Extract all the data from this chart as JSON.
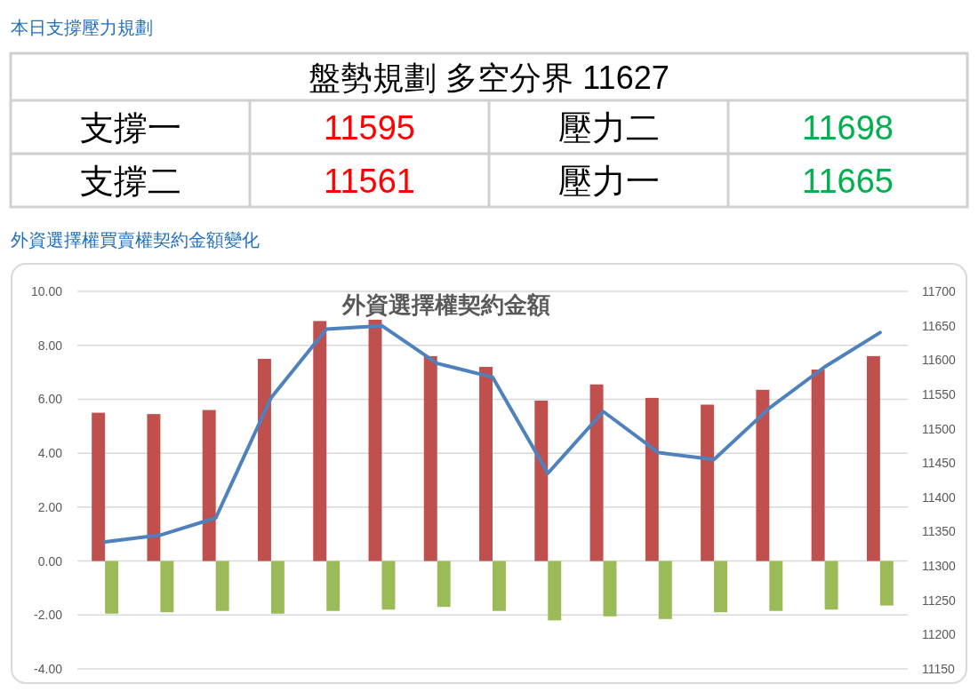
{
  "chart_data": [
    {
      "type": "other",
      "title": "本日支撐壓力規劃",
      "annotations": [
        "盤勢規劃 多空分界 11627",
        "支撐一",
        "11595",
        "壓力二",
        "11698",
        "支撐二",
        "11561",
        "壓力一",
        "11665"
      ]
    },
    {
      "type": "bar",
      "title": "外資選擇權契約金額",
      "annotations": [
        "外資選擇權買賣權契約金額變化"
      ],
      "categories": [
        null,
        null,
        null,
        null,
        null,
        null,
        null,
        null,
        null,
        null,
        null,
        null,
        null,
        null,
        null
      ],
      "series": [
        {
          "color": "#c0504d",
          "values": [
            5.5,
            5.45,
            5.6,
            7.5,
            8.9,
            8.95,
            7.6,
            7.2,
            5.95,
            6.55,
            6.05,
            5.8,
            6.35,
            7.1,
            7.6
          ]
        },
        {
          "color": "#9bbb59",
          "values": [
            -1.95,
            -1.9,
            -1.85,
            -1.95,
            -1.85,
            -1.8,
            -1.7,
            -1.85,
            -2.2,
            -2.05,
            -2.15,
            -1.9,
            -1.85,
            -1.8,
            -1.65
          ]
        },
        {
          "type": "line",
          "axis": "y2",
          "color": "#4f81bd",
          "values": [
            11335,
            11345,
            11370,
            11545,
            11645,
            11650,
            11595,
            11575,
            11435,
            11525,
            11465,
            11455,
            11530,
            11590,
            11640
          ]
        }
      ],
      "ylim": [
        -4,
        10
      ],
      "yticks": [
        {
          "value": -4,
          "label": "-4.00"
        },
        {
          "value": -2,
          "label": "-2.00"
        },
        {
          "value": 0,
          "label": "0.00"
        },
        {
          "value": 2,
          "label": "2.00"
        },
        {
          "value": 4,
          "label": "4.00"
        },
        {
          "value": 6,
          "label": "6.00"
        },
        {
          "value": 8,
          "label": "8.00"
        },
        {
          "value": 10,
          "label": "10.00"
        }
      ],
      "y2lim": [
        11150,
        11700
      ],
      "y2ticks": [
        11150,
        11200,
        11250,
        11300,
        11350,
        11400,
        11450,
        11500,
        11550,
        11600,
        11650,
        11700
      ],
      "grid": "y"
    }
  ]
}
